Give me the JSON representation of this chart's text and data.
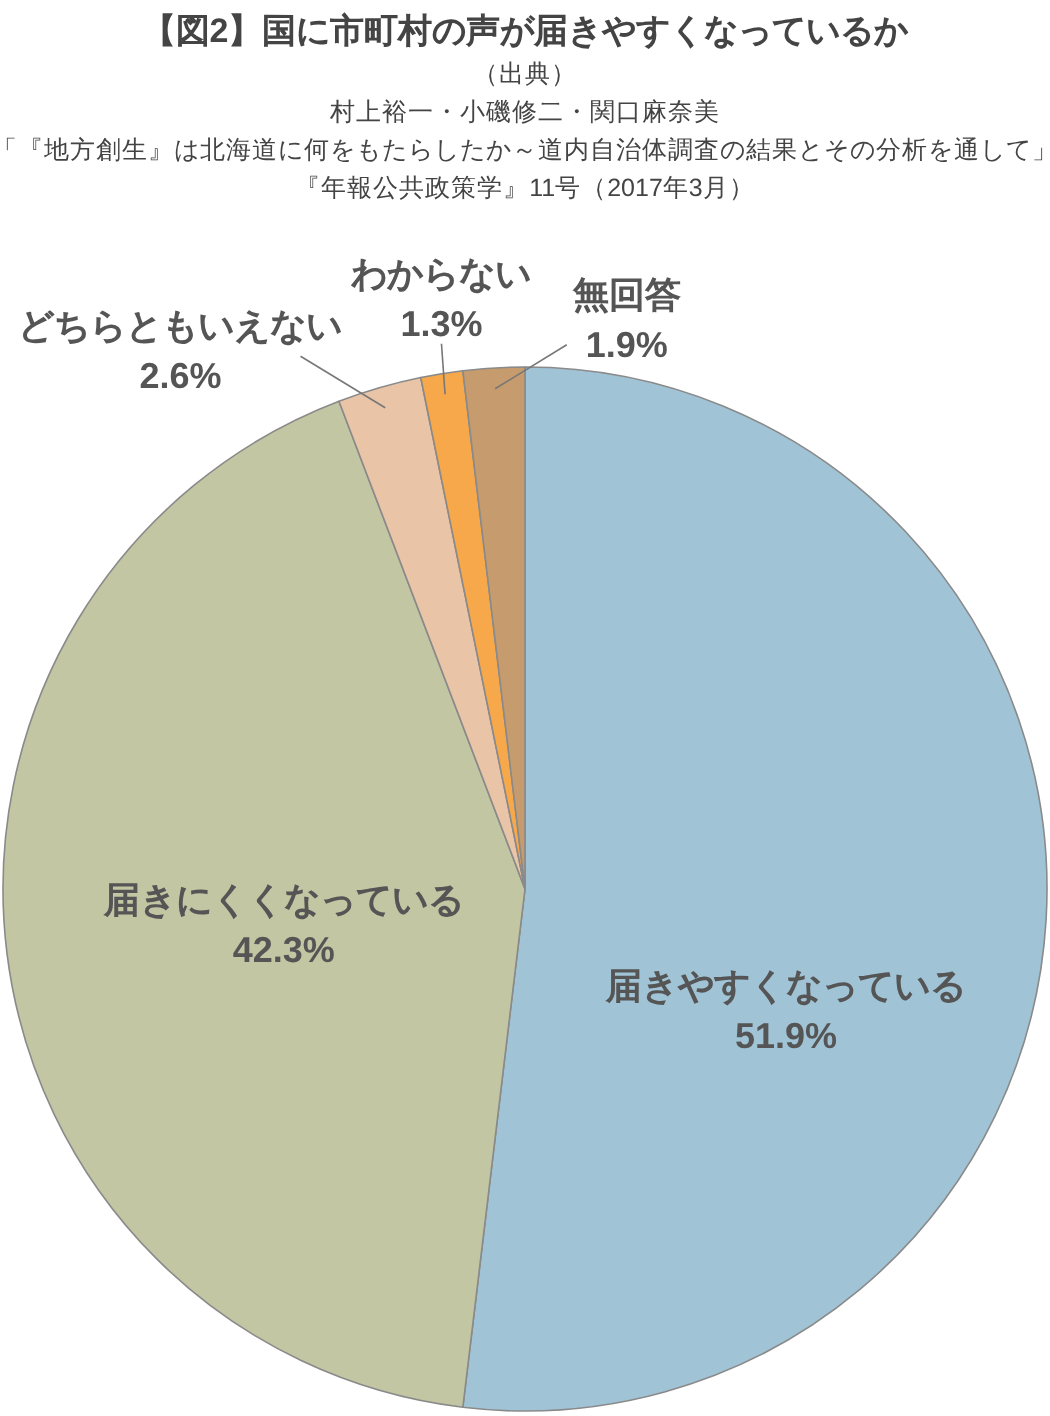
{
  "chart_data": {
    "type": "pie",
    "title": "【図2】国に市町村の声が届きやすくなっているか",
    "annotations": [
      "（出典）",
      "村上裕一・小磯修二・関口麻奈美",
      "「『地方創生』は北海道に何をもたらしたか～道内自治体調査の結果とその分析を通して」",
      "『年報公共政策学』11号（2017年3月）"
    ],
    "categories": [
      "届きやすくなっている",
      "届きにくくなっている",
      "どちらともいえない",
      "わからない",
      "無回答"
    ],
    "values": [
      51.9,
      42.3,
      2.6,
      1.3,
      1.9
    ],
    "value_labels": [
      "51.9%",
      "42.3%",
      "2.6%",
      "1.3%",
      "1.9%"
    ],
    "colors": [
      "#a0c4d6",
      "#c3c6a2",
      "#e9c4a7",
      "#f7a84a",
      "#c69c6e"
    ]
  }
}
